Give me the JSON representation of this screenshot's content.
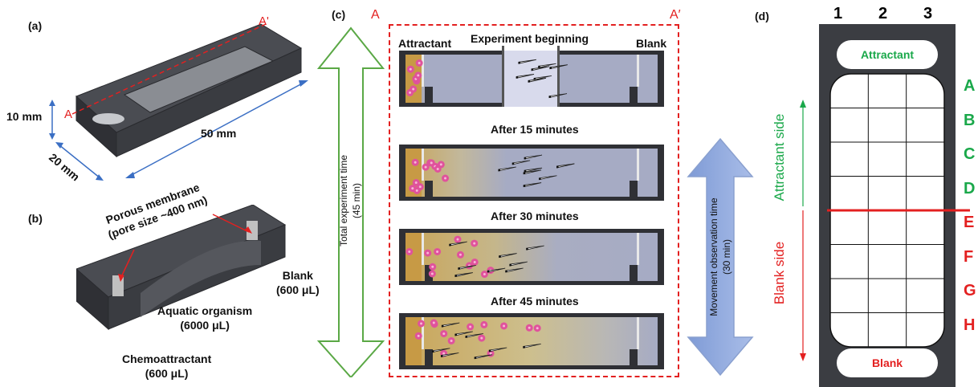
{
  "panel_a": {
    "letter": "(a)",
    "section_start": "A",
    "section_end": "A'",
    "height_label": "10 mm",
    "width_label": "20 mm",
    "length_label": "50 mm"
  },
  "panel_b": {
    "letter": "(b)",
    "membrane_line1": "Porous membrane",
    "membrane_line2": "(pore size ~400 nm)",
    "blank_line1": "Blank",
    "blank_line2": "(600 μL)",
    "organism_line1": "Aquatic organism",
    "organism_line2": "(6000 μL)",
    "chemo_line1": "Chemoattractant",
    "chemo_line2": "(600 μL)"
  },
  "panel_c": {
    "letter": "(c)",
    "section_start": "A",
    "section_end": "A′",
    "total_time_line1": "Total experiment time",
    "total_time_line2": "(45 min)",
    "movement_time_line1": "Movement observation time",
    "movement_time_line2": "(30 min)",
    "attractant_label": "Attractant",
    "blank_label": "Blank",
    "stages": [
      {
        "title": "Experiment beginning"
      },
      {
        "title": "After 15 minutes"
      },
      {
        "title": "After 30 minutes"
      },
      {
        "title": "After 45 minutes"
      }
    ]
  },
  "panel_d": {
    "letter": "(d)",
    "columns": [
      "1",
      "2",
      "3"
    ],
    "top_well": "Attractant",
    "bottom_well": "Blank",
    "attractant_side": "Attractant side",
    "blank_side": "Blank side",
    "rows": [
      {
        "label": "A",
        "side": "attractant"
      },
      {
        "label": "B",
        "side": "attractant"
      },
      {
        "label": "C",
        "side": "attractant"
      },
      {
        "label": "D",
        "side": "attractant"
      },
      {
        "label": "E",
        "side": "blank"
      },
      {
        "label": "F",
        "side": "blank"
      },
      {
        "label": "G",
        "side": "blank"
      },
      {
        "label": "H",
        "side": "blank"
      }
    ]
  },
  "colors": {
    "attractant_green": "#1aa84a",
    "blank_red": "#e32020",
    "device_dark": "#3b3d42",
    "chamber_blue": "#a6abc4",
    "gradient_yellow": "#c9b36a",
    "particle_pink": "#e0529c"
  }
}
